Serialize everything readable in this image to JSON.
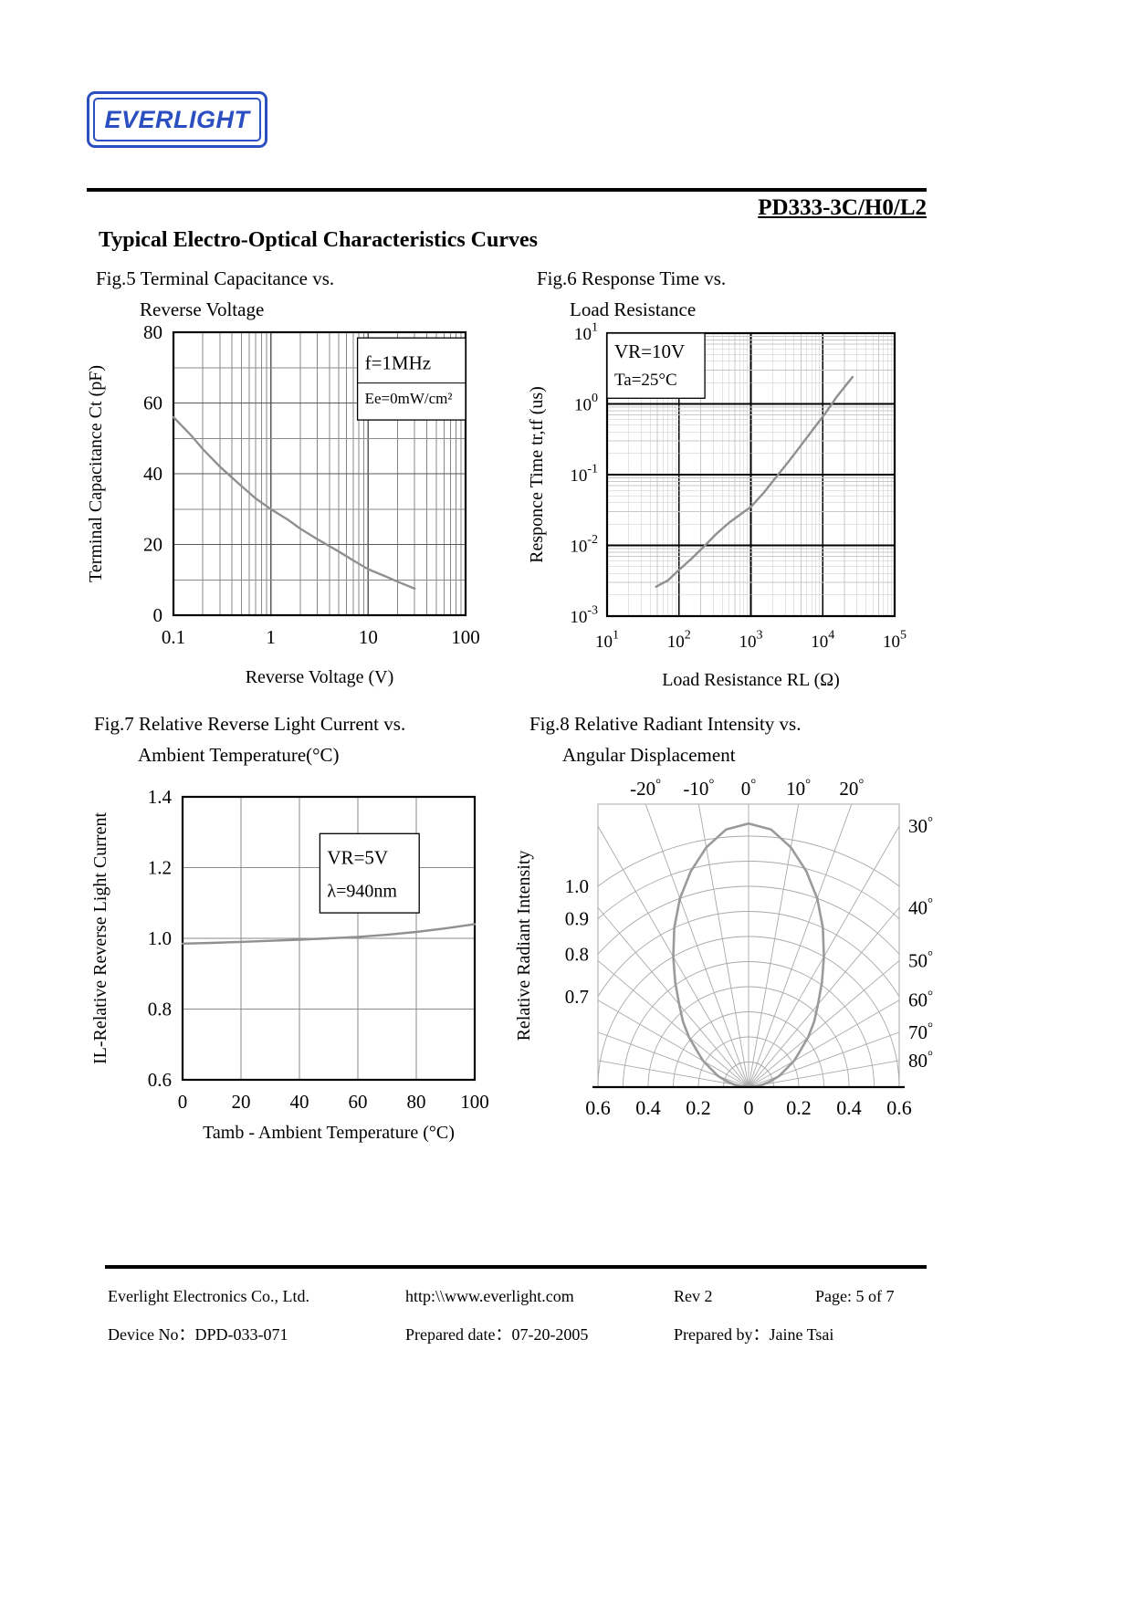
{
  "page": {
    "logo_text": "EVERLIGHT",
    "part_number": "PD333-3C/H0/L2",
    "section_title": "Typical Electro-Optical Characteristics Curves"
  },
  "figures": [
    {
      "caption_line1": "Fig.5 Terminal Capacitance vs.",
      "caption_line2": "Reverse Voltage"
    },
    {
      "caption_line1": "Fig.6 Response Time vs.",
      "caption_line2": "Load Resistance"
    },
    {
      "caption_line1": "Fig.7 Relative Reverse Light Current vs.",
      "caption_line2": "Ambient Temperature(°C)"
    },
    {
      "caption_line1": "Fig.8 Relative Radiant Intensity vs.",
      "caption_line2": "Angular Displacement"
    }
  ],
  "footer": {
    "company": "Everlight Electronics Co., Ltd.",
    "url": "http:\\\\www.everlight.com",
    "rev": "Rev 2",
    "page_info": "Page: 5 of 7",
    "device_no": "Device No：DPD-033-071",
    "prepared_date": "Prepared date：07-20-2005",
    "prepared_by": "Prepared by：Jaine Tsai"
  },
  "chart_data": [
    {
      "id": "fig5",
      "type": "line",
      "title": "Terminal Capacitance vs. Reverse Voltage",
      "xlabel": "Reverse Voltage (V)",
      "ylabel": "Terminal Capacitance Ct (pF)",
      "xscale": "log",
      "yscale": "linear",
      "xlim": [
        0.1,
        100
      ],
      "ylim": [
        0,
        80
      ],
      "xticks": [
        0.1,
        1,
        10,
        100
      ],
      "xtick_labels": [
        "0.1",
        "1",
        "10",
        "100"
      ],
      "yticks": [
        0,
        20,
        40,
        60,
        80
      ],
      "ytick_labels": [
        "0",
        "20",
        "40",
        "60",
        "80"
      ],
      "y_minor_step": 10,
      "grid": true,
      "annotations": [
        {
          "lines": [
            "f=1MHz",
            "Ee=0mW/cm²"
          ],
          "boxed": true,
          "divider": true,
          "fx": 0.63,
          "fy": 0.02,
          "fw": 0.37,
          "fh": 0.29
        }
      ],
      "series": [
        {
          "name": "terminal-capacitance",
          "color": "#909090",
          "x": [
            0.1,
            0.15,
            0.2,
            0.3,
            0.5,
            0.7,
            1,
            1.5,
            2,
            3,
            5,
            7,
            10,
            15,
            20,
            30
          ],
          "y": [
            56,
            51,
            47,
            42,
            36.5,
            33,
            30,
            27,
            24.5,
            21.5,
            18,
            15.5,
            13,
            11,
            9.5,
            7.5
          ]
        }
      ]
    },
    {
      "id": "fig6",
      "type": "line",
      "title": "Response Time vs. Load Resistance",
      "xlabel": "Load Resistance RL (Ω)",
      "ylabel": "Responce Time tr,tf (us)",
      "xscale": "log",
      "yscale": "log",
      "xlim": [
        10,
        100000
      ],
      "ylim": [
        0.001,
        10
      ],
      "xticks": [
        10,
        100,
        1000,
        10000,
        100000
      ],
      "yticks": [
        0.001,
        0.01,
        0.1,
        1,
        10
      ],
      "tick_style": "pow10",
      "grid": true,
      "annotations": [
        {
          "lines": [
            "VR=10V",
            "Ta=25°C"
          ],
          "boxed": true,
          "fx": 0,
          "fy": 0,
          "fw": 0.34,
          "fh": 0.23
        }
      ],
      "series": [
        {
          "name": "response-time",
          "color": "#909090",
          "x": [
            48,
            70,
            100,
            150,
            220,
            330,
            500,
            700,
            1000,
            1500,
            2200,
            3300,
            5000,
            7500,
            11000,
            16000,
            26000
          ],
          "y": [
            0.0026,
            0.0032,
            0.0045,
            0.0065,
            0.0095,
            0.0145,
            0.021,
            0.027,
            0.035,
            0.055,
            0.09,
            0.15,
            0.26,
            0.45,
            0.75,
            1.3,
            2.4
          ]
        }
      ]
    },
    {
      "id": "fig7",
      "type": "line",
      "title": "Relative Reverse Light Current vs. Ambient Temperature",
      "xlabel": "Tamb - Ambient Temperature (°C)",
      "ylabel": "IL-Relative Reverse Light Current",
      "xscale": "linear",
      "yscale": "linear",
      "xlim": [
        0,
        100
      ],
      "ylim": [
        0.6,
        1.4
      ],
      "xticks": [
        0,
        20,
        40,
        60,
        80,
        100
      ],
      "xtick_labels": [
        "0",
        "20",
        "40",
        "60",
        "80",
        "100"
      ],
      "yticks": [
        0.6,
        0.8,
        1.0,
        1.2,
        1.4
      ],
      "ytick_labels": [
        "0.6",
        "0.8",
        "1.0",
        "1.2",
        "1.4"
      ],
      "grid": true,
      "annotations": [
        {
          "lines": [
            "VR=5V",
            "λ=940nm"
          ],
          "boxed": true,
          "fx": 0.47,
          "fy": 0.13,
          "fw": 0.34,
          "fh": 0.28
        }
      ],
      "series": [
        {
          "name": "relative-reverse-light-current",
          "color": "#909090",
          "x": [
            0,
            10,
            20,
            30,
            40,
            50,
            60,
            70,
            80,
            90,
            100
          ],
          "y": [
            0.985,
            0.987,
            0.99,
            0.993,
            0.996,
            1.0,
            1.004,
            1.01,
            1.018,
            1.028,
            1.04
          ]
        }
      ]
    },
    {
      "id": "fig8",
      "type": "polar",
      "title": "Relative Radiant Intensity vs. Angular Displacement",
      "ylabel": "Relative Radiant Intensity",
      "angle_ticks_top": [
        -20,
        -10,
        0,
        10,
        20
      ],
      "angle_ticks_right": [
        30,
        40,
        50,
        60,
        70,
        80
      ],
      "radial_labels": [
        "1.0",
        "0.9",
        "0.8",
        "0.7"
      ],
      "radial_label_values": [
        1.0,
        0.9,
        0.8,
        0.7
      ],
      "radial_arc_step": 0.1,
      "radial_max": 1.0,
      "bottom_scale_labels": [
        "0.6",
        "0.4",
        "0.2",
        "0",
        "0.2",
        "0.4",
        "0.6"
      ],
      "bottom_scale_values": [
        -0.6,
        -0.4,
        -0.2,
        0,
        0.2,
        0.4,
        0.6
      ],
      "series": [
        {
          "name": "radiation-pattern",
          "color": "#9a9a9a",
          "symmetric": true,
          "angles_deg": [
            0,
            5,
            10,
            15,
            20,
            25,
            30,
            35,
            40,
            45,
            50,
            55,
            60,
            65,
            70,
            75,
            80,
            85,
            90
          ],
          "r": [
            1.05,
            1.03,
            0.97,
            0.89,
            0.8,
            0.7,
            0.6,
            0.51,
            0.43,
            0.37,
            0.31,
            0.25,
            0.21,
            0.16,
            0.13,
            0.09,
            0.06,
            0.03,
            0
          ]
        }
      ]
    }
  ]
}
